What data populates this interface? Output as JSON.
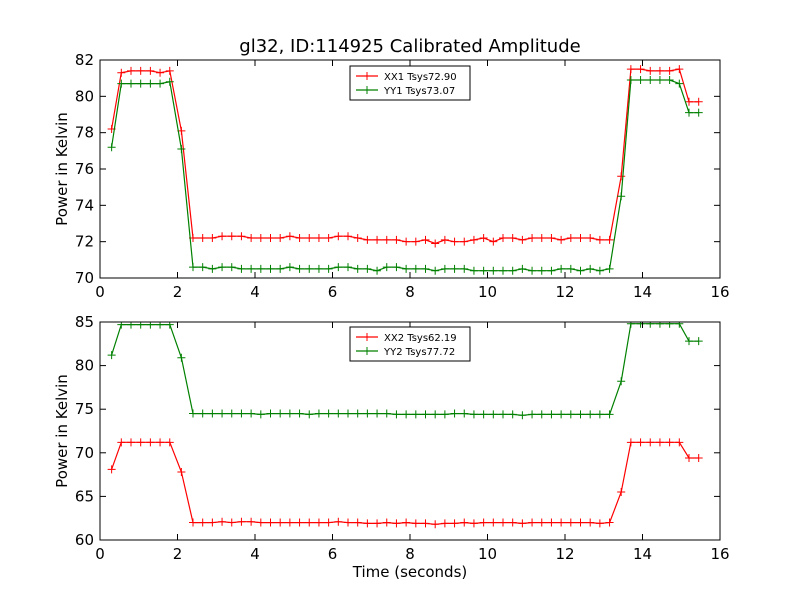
{
  "title": "gl32, ID:114925 Calibrated Amplitude",
  "colors": {
    "xx": "#ff0000",
    "yy": "#008000"
  },
  "chart_data": [
    {
      "type": "line",
      "xlabel": "",
      "ylabel": "Power in Kelvin",
      "xlim": [
        0,
        16
      ],
      "ylim": [
        70,
        82
      ],
      "xticks": [
        0,
        2,
        4,
        6,
        8,
        10,
        12,
        14,
        16
      ],
      "yticks": [
        70,
        72,
        74,
        76,
        78,
        80,
        82
      ],
      "grid": false,
      "legend_position": "top-center",
      "x": [
        0.3,
        0.55,
        0.8,
        1.05,
        1.3,
        1.55,
        1.8,
        2.1,
        2.4,
        2.65,
        2.9,
        3.15,
        3.4,
        3.65,
        3.9,
        4.15,
        4.4,
        4.65,
        4.9,
        5.15,
        5.4,
        5.65,
        5.9,
        6.15,
        6.4,
        6.65,
        6.9,
        7.15,
        7.4,
        7.65,
        7.9,
        8.15,
        8.4,
        8.65,
        8.9,
        9.15,
        9.4,
        9.65,
        9.9,
        10.15,
        10.4,
        10.65,
        10.9,
        11.15,
        11.4,
        11.65,
        11.9,
        12.15,
        12.4,
        12.65,
        12.9,
        13.15,
        13.45,
        13.7,
        13.95,
        14.2,
        14.45,
        14.7,
        14.95,
        15.2,
        15.45
      ],
      "series": [
        {
          "name": "XX1 Tsys72.90",
          "color": "#ff0000",
          "values": [
            78.2,
            81.3,
            81.4,
            81.4,
            81.4,
            81.3,
            81.4,
            78.1,
            72.2,
            72.2,
            72.2,
            72.3,
            72.3,
            72.3,
            72.2,
            72.2,
            72.2,
            72.2,
            72.3,
            72.2,
            72.2,
            72.2,
            72.2,
            72.3,
            72.3,
            72.2,
            72.1,
            72.1,
            72.1,
            72.1,
            72.0,
            72.0,
            72.1,
            71.9,
            72.1,
            72.0,
            72.0,
            72.1,
            72.2,
            72.0,
            72.2,
            72.2,
            72.1,
            72.2,
            72.2,
            72.2,
            72.1,
            72.2,
            72.2,
            72.2,
            72.1,
            72.1,
            75.6,
            81.5,
            81.5,
            81.4,
            81.4,
            81.4,
            81.5,
            79.7,
            79.7
          ]
        },
        {
          "name": "YY1 Tsys73.07",
          "color": "#008000",
          "values": [
            77.2,
            80.7,
            80.7,
            80.7,
            80.7,
            80.7,
            80.8,
            77.1,
            70.6,
            70.6,
            70.5,
            70.6,
            70.6,
            70.5,
            70.5,
            70.5,
            70.5,
            70.5,
            70.6,
            70.5,
            70.5,
            70.5,
            70.5,
            70.6,
            70.6,
            70.5,
            70.5,
            70.4,
            70.6,
            70.6,
            70.5,
            70.5,
            70.5,
            70.4,
            70.5,
            70.5,
            70.5,
            70.4,
            70.4,
            70.4,
            70.4,
            70.4,
            70.5,
            70.4,
            70.4,
            70.4,
            70.5,
            70.5,
            70.4,
            70.5,
            70.4,
            70.5,
            74.5,
            80.9,
            80.9,
            80.9,
            80.9,
            80.9,
            80.7,
            79.1,
            79.1
          ]
        }
      ]
    },
    {
      "type": "line",
      "xlabel": "Time (seconds)",
      "ylabel": "Power in Kelvin",
      "xlim": [
        0,
        16
      ],
      "ylim": [
        60,
        85
      ],
      "xticks": [
        0,
        2,
        4,
        6,
        8,
        10,
        12,
        14,
        16
      ],
      "yticks": [
        60,
        65,
        70,
        75,
        80,
        85
      ],
      "grid": false,
      "legend_position": "top-center",
      "x": [
        0.3,
        0.55,
        0.8,
        1.05,
        1.3,
        1.55,
        1.8,
        2.1,
        2.4,
        2.65,
        2.9,
        3.15,
        3.4,
        3.65,
        3.9,
        4.15,
        4.4,
        4.65,
        4.9,
        5.15,
        5.4,
        5.65,
        5.9,
        6.15,
        6.4,
        6.65,
        6.9,
        7.15,
        7.4,
        7.65,
        7.9,
        8.15,
        8.4,
        8.65,
        8.9,
        9.15,
        9.4,
        9.65,
        9.9,
        10.15,
        10.4,
        10.65,
        10.9,
        11.15,
        11.4,
        11.65,
        11.9,
        12.15,
        12.4,
        12.65,
        12.9,
        13.15,
        13.45,
        13.7,
        13.95,
        14.2,
        14.45,
        14.7,
        14.95,
        15.2,
        15.45
      ],
      "series": [
        {
          "name": "XX2 Tsys62.19",
          "color": "#ff0000",
          "values": [
            68.1,
            71.2,
            71.2,
            71.2,
            71.2,
            71.2,
            71.2,
            67.8,
            62.0,
            62.0,
            62.0,
            62.1,
            62.0,
            62.1,
            62.1,
            62.0,
            62.0,
            62.0,
            62.0,
            62.0,
            62.0,
            62.0,
            62.0,
            62.1,
            62.0,
            62.0,
            61.9,
            61.9,
            62.0,
            61.9,
            62.0,
            61.9,
            61.9,
            61.8,
            61.9,
            61.9,
            62.0,
            61.9,
            62.0,
            62.0,
            62.0,
            62.0,
            61.9,
            62.0,
            62.0,
            62.0,
            62.0,
            62.0,
            62.0,
            62.0,
            61.9,
            62.0,
            65.5,
            71.2,
            71.2,
            71.2,
            71.2,
            71.2,
            71.2,
            69.4,
            69.4
          ]
        },
        {
          "name": "YY2 Tsys77.72",
          "color": "#008000",
          "values": [
            81.2,
            84.7,
            84.7,
            84.7,
            84.7,
            84.7,
            84.7,
            80.9,
            74.5,
            74.5,
            74.5,
            74.5,
            74.5,
            74.5,
            74.5,
            74.4,
            74.5,
            74.5,
            74.5,
            74.5,
            74.4,
            74.5,
            74.5,
            74.5,
            74.5,
            74.5,
            74.5,
            74.5,
            74.5,
            74.4,
            74.4,
            74.4,
            74.4,
            74.4,
            74.4,
            74.5,
            74.5,
            74.4,
            74.4,
            74.4,
            74.4,
            74.4,
            74.3,
            74.4,
            74.4,
            74.4,
            74.4,
            74.4,
            74.4,
            74.4,
            74.4,
            74.4,
            78.2,
            84.8,
            84.8,
            84.8,
            84.8,
            84.8,
            84.8,
            82.8,
            82.8
          ]
        }
      ]
    }
  ]
}
